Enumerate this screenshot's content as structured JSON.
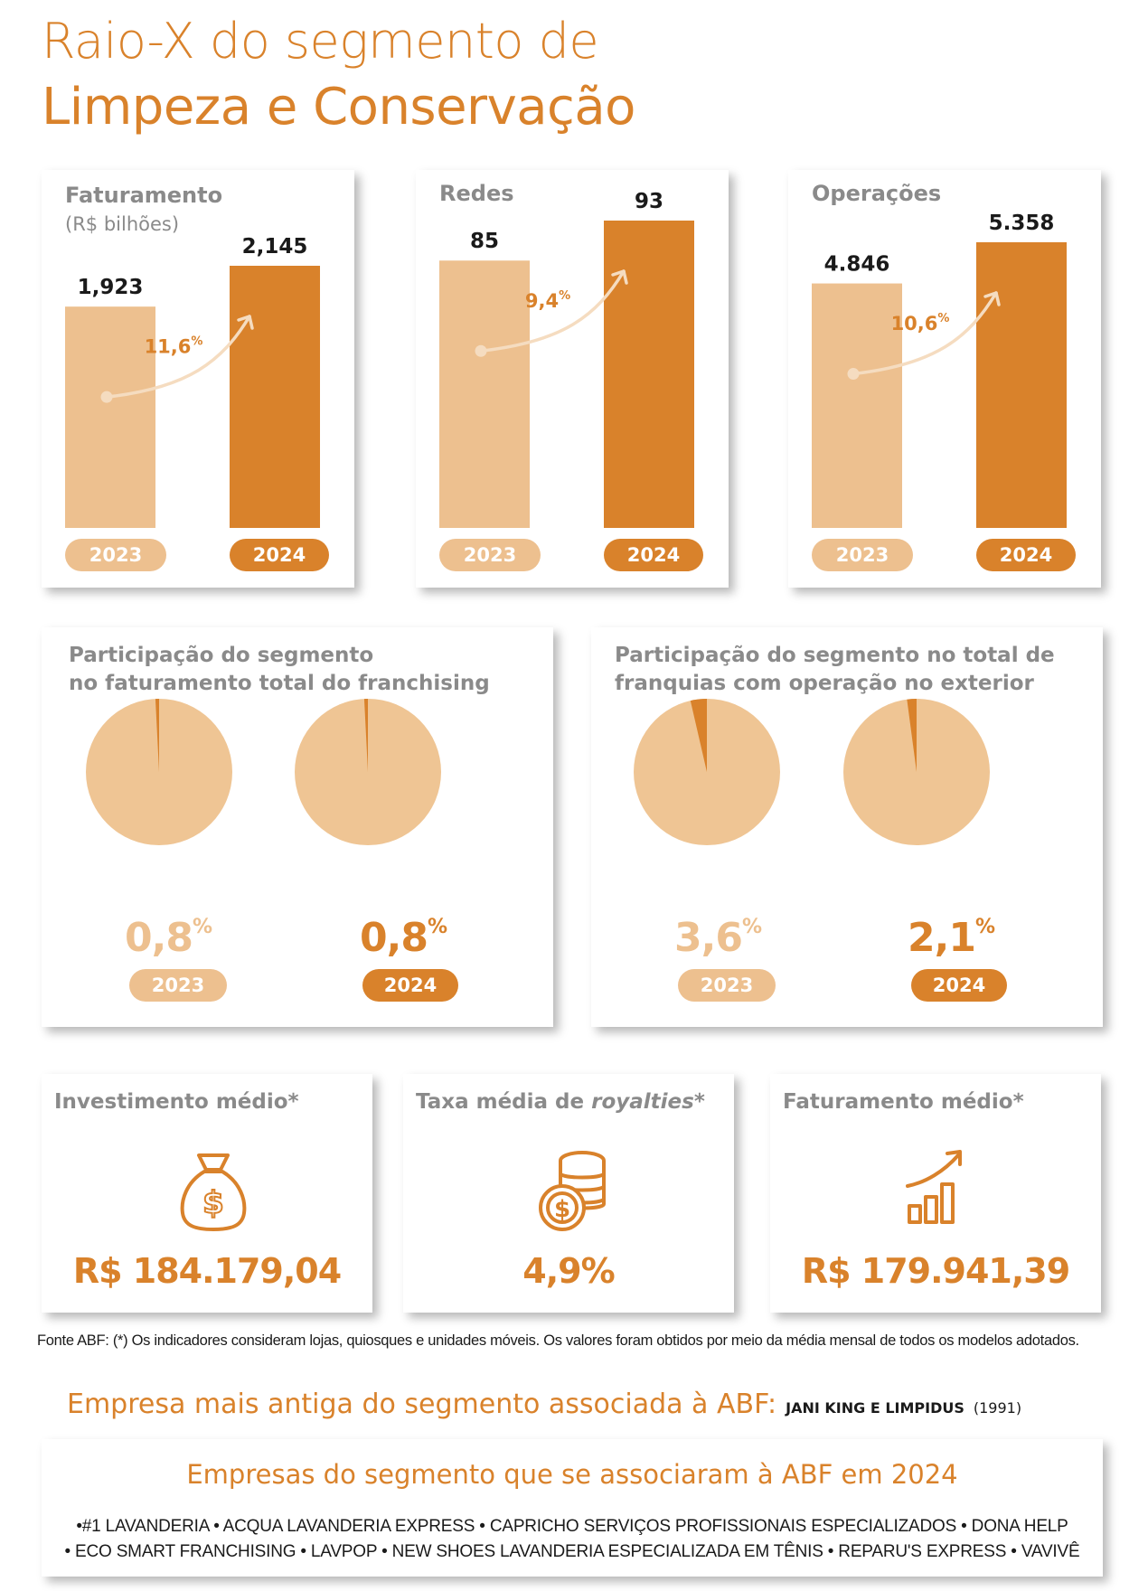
{
  "header": {
    "title_line1": "Raio-X do segmento de",
    "title_line2": "Limpeza e Conservação"
  },
  "colors": {
    "accent": "#d9822b",
    "light": "#edc08f",
    "pie_light": "#efc594",
    "gray": "#8a8a8a"
  },
  "chart_data": [
    {
      "type": "bar",
      "title": "Faturamento",
      "subtitle": "(R$ bilhões)",
      "categories": [
        "2023",
        "2024"
      ],
      "values": [
        1.923,
        2.145
      ],
      "value_labels": [
        "1,923",
        "2,145"
      ],
      "growth_label": "11,6",
      "growth_unit": "%"
    },
    {
      "type": "bar",
      "title": "Redes",
      "categories": [
        "2023",
        "2024"
      ],
      "values": [
        85,
        93
      ],
      "value_labels": [
        "85",
        "93"
      ],
      "growth_label": "9,4",
      "growth_unit": "%"
    },
    {
      "type": "bar",
      "title": "Operações",
      "categories": [
        "2023",
        "2024"
      ],
      "values": [
        4846,
        5358
      ],
      "value_labels": [
        "4.846",
        "5.358"
      ],
      "growth_label": "10,6",
      "growth_unit": "%"
    },
    {
      "type": "pie",
      "title_line1": "Participação do segmento",
      "title_line2": "no faturamento total do franchising",
      "items": [
        {
          "year": "2023",
          "value": 0.8,
          "label": "0,8",
          "unit": "%"
        },
        {
          "year": "2024",
          "value": 0.8,
          "label": "0,8",
          "unit": "%"
        }
      ]
    },
    {
      "type": "pie",
      "title_line1": "Participação do segmento no total de",
      "title_line2": "franquias com operação no exterior",
      "items": [
        {
          "year": "2023",
          "value": 3.6,
          "label": "3,6",
          "unit": "%"
        },
        {
          "year": "2024",
          "value": 2.1,
          "label": "2,1",
          "unit": "%"
        }
      ]
    }
  ],
  "kpis": [
    {
      "title": "Investimento médio*",
      "icon": "money-bag-icon",
      "value": "R$ 184.179,04"
    },
    {
      "title_prefix": "Taxa média de ",
      "title_italic": "royalties",
      "title_suffix": "*",
      "icon": "coins-icon",
      "value": "4,9%"
    },
    {
      "title": "Faturamento médio*",
      "icon": "growth-chart-icon",
      "value": "R$ 179.941,39"
    }
  ],
  "footnote": "Fonte ABF: (*) Os indicadores consideram lojas, quiosques e unidades móveis. Os valores foram obtidos por meio da média mensal de todos os modelos adotados.",
  "oldest": {
    "label": "Empresa mais antiga do segmento associada à ABF:",
    "company": "JANI KING E LIMPIDUS",
    "year": "(1991)"
  },
  "new_associates": {
    "title": "Empresas do segmento que se associaram à ABF em 2024",
    "line1": "•#1 LAVANDERIA • ACQUA LAVANDERIA EXPRESS • CAPRICHO SERVIÇOS PROFISSIONAIS ESPECIALIZADOS • DONA HELP",
    "line2": "• ECO SMART FRANCHISING • LAVPOP • NEW SHOES LAVANDERIA ESPECIALIZADA EM TÊNIS • REPARU'S EXPRESS • VAVIVÊ"
  }
}
